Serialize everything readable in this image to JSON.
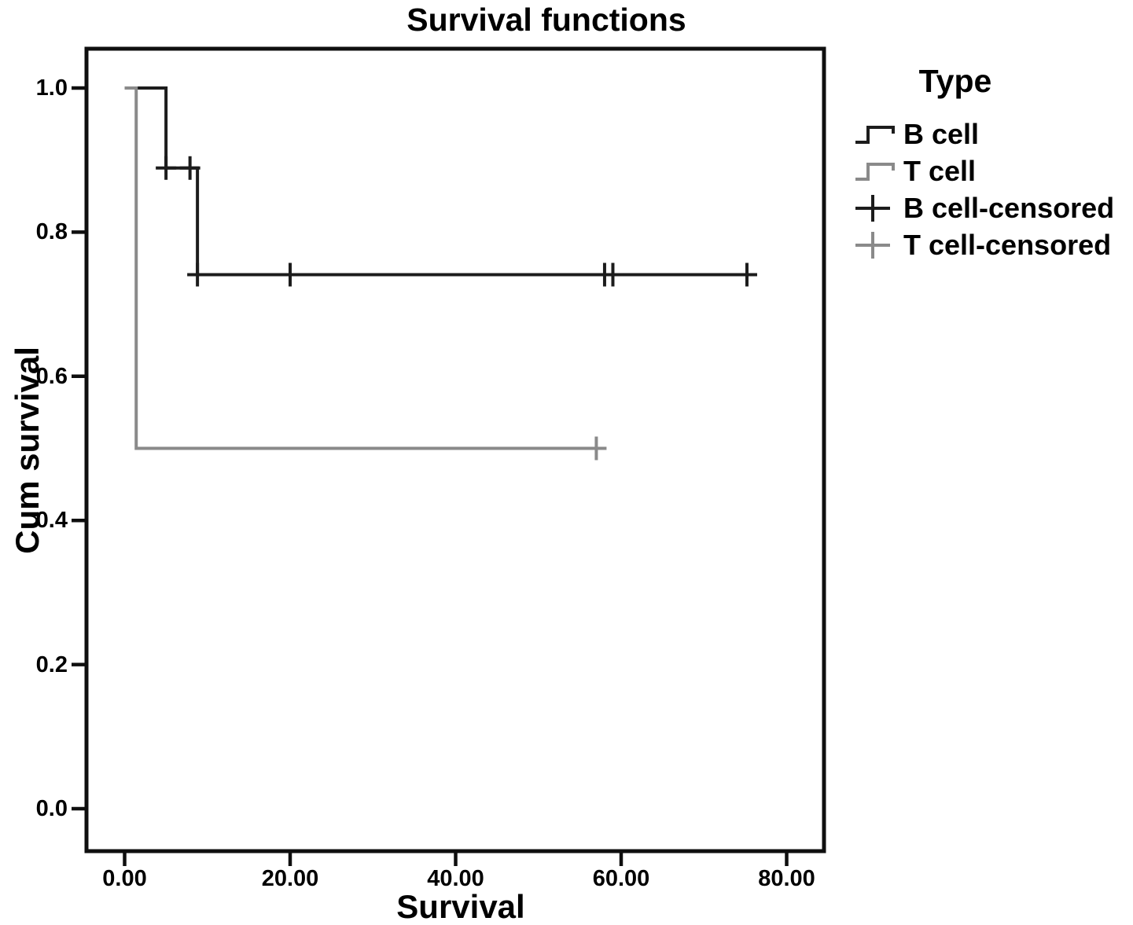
{
  "chart_data": {
    "type": "line",
    "subtype": "kaplan_meier_step",
    "title": "Survival functions",
    "xlabel": "Survival",
    "ylabel": "Cum survival",
    "xlim": [
      0,
      80
    ],
    "ylim": [
      0.0,
      1.0
    ],
    "grid": false,
    "legend_position": "top-right-outside",
    "frame_color": "#0f0f0f",
    "x_ticks": [
      {
        "value": 0,
        "label": "0.00"
      },
      {
        "value": 20,
        "label": "20.00"
      },
      {
        "value": 40,
        "label": "40.00"
      },
      {
        "value": 60,
        "label": "60.00"
      },
      {
        "value": 80,
        "label": "80.00"
      }
    ],
    "y_ticks": [
      {
        "value": 0.0,
        "label": "0.0"
      },
      {
        "value": 0.2,
        "label": "0.2"
      },
      {
        "value": 0.4,
        "label": "0.4"
      },
      {
        "value": 0.6,
        "label": "0.6"
      },
      {
        "value": 0.8,
        "label": "0.8"
      },
      {
        "value": 1.0,
        "label": "1.0"
      }
    ],
    "series": [
      {
        "name": "B cell",
        "color": "#1c1c1c",
        "steps": [
          [
            0,
            1.0
          ],
          [
            5,
            1.0
          ],
          [
            5,
            0.889
          ],
          [
            8.8,
            0.889
          ],
          [
            8.8,
            0.741
          ],
          [
            75.2,
            0.741
          ]
        ],
        "censored": [
          [
            5,
            0.889
          ],
          [
            7.9,
            0.889
          ],
          [
            8.8,
            0.741
          ],
          [
            20,
            0.741
          ],
          [
            58,
            0.741
          ],
          [
            59,
            0.741
          ],
          [
            75.2,
            0.741
          ]
        ]
      },
      {
        "name": "T cell",
        "color": "#8a8a8a",
        "steps": [
          [
            0,
            1.0
          ],
          [
            1.4,
            1.0
          ],
          [
            1.4,
            0.5
          ],
          [
            57,
            0.5
          ]
        ],
        "censored": [
          [
            57,
            0.5
          ]
        ]
      }
    ],
    "legend": {
      "title": "Type",
      "entries": [
        {
          "label": "B cell",
          "icon": "step",
          "color": "#1c1c1c"
        },
        {
          "label": "T cell",
          "icon": "step",
          "color": "#8a8a8a"
        },
        {
          "label": "B cell-censored",
          "icon": "plus",
          "color": "#1c1c1c"
        },
        {
          "label": "T cell-censored",
          "icon": "plus",
          "color": "#8a8a8a"
        }
      ]
    }
  }
}
